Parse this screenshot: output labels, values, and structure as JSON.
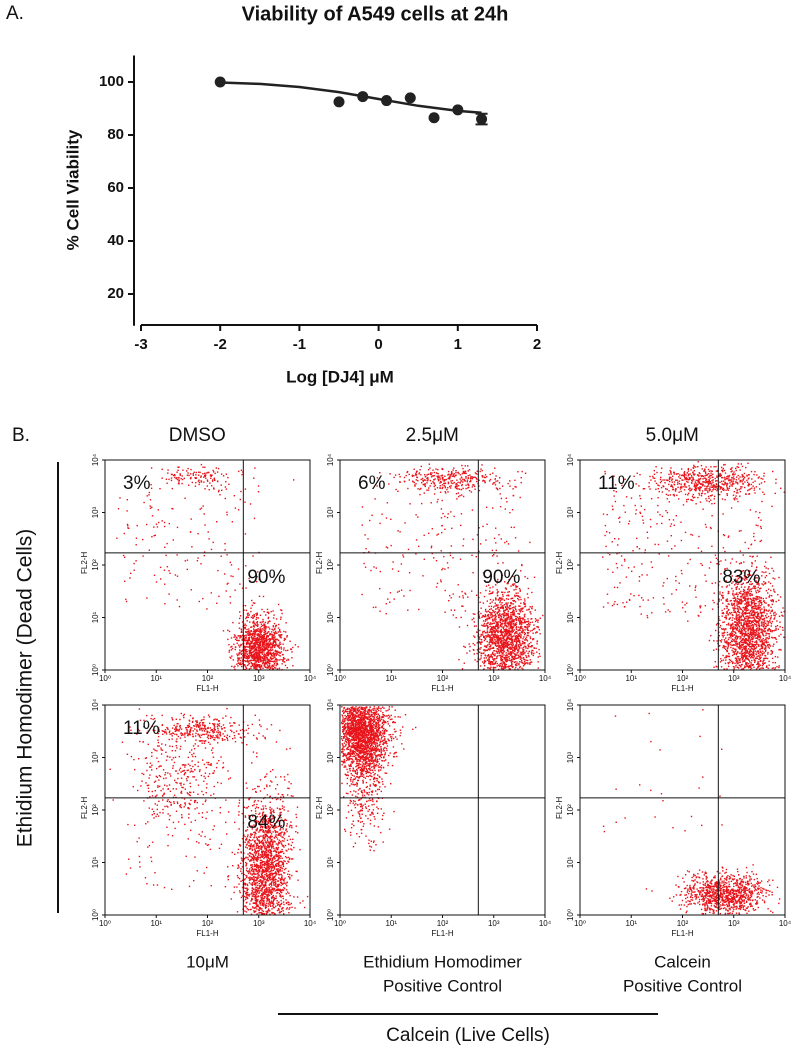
{
  "figure_labels": [
    "A.",
    "B."
  ],
  "panel_b_y_label": "Ethidium Homodimer (Dead Cells)",
  "panel_b_x_label": "Calcein (Live Cells)",
  "chart_data": [
    {
      "type": "scatter",
      "title": "Viability of A549 cells at 24h",
      "x_label": "Log [DJ4] μM",
      "y_label": "% Cell Viability",
      "x": [
        -2,
        -0.5,
        -0.2,
        0.1,
        0.4,
        0.7,
        1,
        1.3
      ],
      "values": [
        100,
        92.5,
        94.5,
        93,
        94,
        86.5,
        89.5,
        86
      ],
      "errors": [
        null,
        null,
        null,
        null,
        null,
        null,
        null,
        2
      ],
      "fit": {
        "x": [
          -2,
          -1.5,
          -1,
          -0.5,
          0,
          0.5,
          1,
          1.3
        ],
        "y": [
          99.8,
          99.3,
          98.1,
          96.2,
          93.6,
          91,
          89.1,
          88.4
        ]
      },
      "color": "#222222",
      "xlim": [
        -3,
        2
      ],
      "xticks": [
        -3,
        -2,
        -1,
        0,
        1,
        2
      ],
      "ylim": [
        8,
        110
      ],
      "yticks": [
        20,
        40,
        60,
        80,
        100
      ]
    },
    {
      "type": "flow",
      "title": "DMSO",
      "x_label": "FL1-H",
      "y_label": "FL2-H",
      "log": true,
      "color": "#e8141b",
      "xlim": [
        1,
        10000
      ],
      "ylim": [
        1,
        10000
      ],
      "gate": [
        500,
        170
      ],
      "ticks": [
        {
          "value": 1,
          "label": "10⁰"
        },
        {
          "value": 10,
          "label": "10¹"
        },
        {
          "value": 100,
          "label": "10²"
        },
        {
          "value": 1000,
          "label": "10³"
        },
        {
          "value": 10000,
          "label": "10⁴"
        }
      ],
      "values": [
        3,
        90
      ],
      "value_labels": [
        "3%",
        "90%"
      ]
    },
    {
      "type": "flow",
      "title": "2.5μM",
      "x_label": "FL1-H",
      "y_label": "FL2-H",
      "log": true,
      "color": "#e8141b",
      "xlim": [
        1,
        10000
      ],
      "ylim": [
        1,
        10000
      ],
      "gate": [
        500,
        170
      ],
      "ticks": [
        {
          "value": 1,
          "label": "10⁰"
        },
        {
          "value": 10,
          "label": "10¹"
        },
        {
          "value": 100,
          "label": "10²"
        },
        {
          "value": 1000,
          "label": "10³"
        },
        {
          "value": 10000,
          "label": "10⁴"
        }
      ],
      "values": [
        6,
        90
      ],
      "value_labels": [
        "6%",
        "90%"
      ]
    },
    {
      "type": "flow",
      "title": "5.0μM",
      "x_label": "FL1-H",
      "y_label": "FL2-H",
      "log": true,
      "color": "#e8141b",
      "xlim": [
        1,
        10000
      ],
      "ylim": [
        1,
        10000
      ],
      "gate": [
        500,
        170
      ],
      "ticks": [
        {
          "value": 1,
          "label": "10⁰"
        },
        {
          "value": 10,
          "label": "10¹"
        },
        {
          "value": 100,
          "label": "10²"
        },
        {
          "value": 1000,
          "label": "10³"
        },
        {
          "value": 10000,
          "label": "10⁴"
        }
      ],
      "values": [
        11,
        83
      ],
      "value_labels": [
        "11%",
        "83%"
      ]
    },
    {
      "type": "flow",
      "caption": [
        "10μM"
      ],
      "x_label": "FL1-H",
      "y_label": "FL2-H",
      "log": true,
      "color": "#e8141b",
      "xlim": [
        1,
        10000
      ],
      "ylim": [
        1,
        10000
      ],
      "gate": [
        500,
        170
      ],
      "ticks": [
        {
          "value": 1,
          "label": "10⁰"
        },
        {
          "value": 10,
          "label": "10¹"
        },
        {
          "value": 100,
          "label": "10²"
        },
        {
          "value": 1000,
          "label": "10³"
        },
        {
          "value": 10000,
          "label": "10⁴"
        }
      ],
      "values": [
        11,
        84
      ],
      "value_labels": [
        "11%",
        "84%"
      ]
    },
    {
      "type": "flow",
      "caption": [
        "Ethidium Homodimer",
        "Positive Control"
      ],
      "x_label": "FL1-H",
      "y_label": "FL2-H",
      "log": true,
      "color": "#e8141b",
      "xlim": [
        1,
        10000
      ],
      "ylim": [
        1,
        10000
      ],
      "gate": [
        500,
        170
      ],
      "ticks": [
        {
          "value": 1,
          "label": "10⁰"
        },
        {
          "value": 10,
          "label": "10¹"
        },
        {
          "value": 100,
          "label": "10²"
        },
        {
          "value": 1000,
          "label": "10³"
        },
        {
          "value": 10000,
          "label": "10⁴"
        }
      ],
      "values": [],
      "value_labels": []
    },
    {
      "type": "flow",
      "caption": [
        "Calcein",
        "Positive Control"
      ],
      "x_label": "FL1-H",
      "y_label": "FL2-H",
      "log": true,
      "color": "#e8141b",
      "xlim": [
        1,
        10000
      ],
      "ylim": [
        1,
        10000
      ],
      "gate": [
        500,
        170
      ],
      "ticks": [
        {
          "value": 1,
          "label": "10⁰"
        },
        {
          "value": 10,
          "label": "10¹"
        },
        {
          "value": 100,
          "label": "10²"
        },
        {
          "value": 1000,
          "label": "10³"
        },
        {
          "value": 10000,
          "label": "10⁴"
        }
      ],
      "values": [],
      "value_labels": []
    }
  ]
}
